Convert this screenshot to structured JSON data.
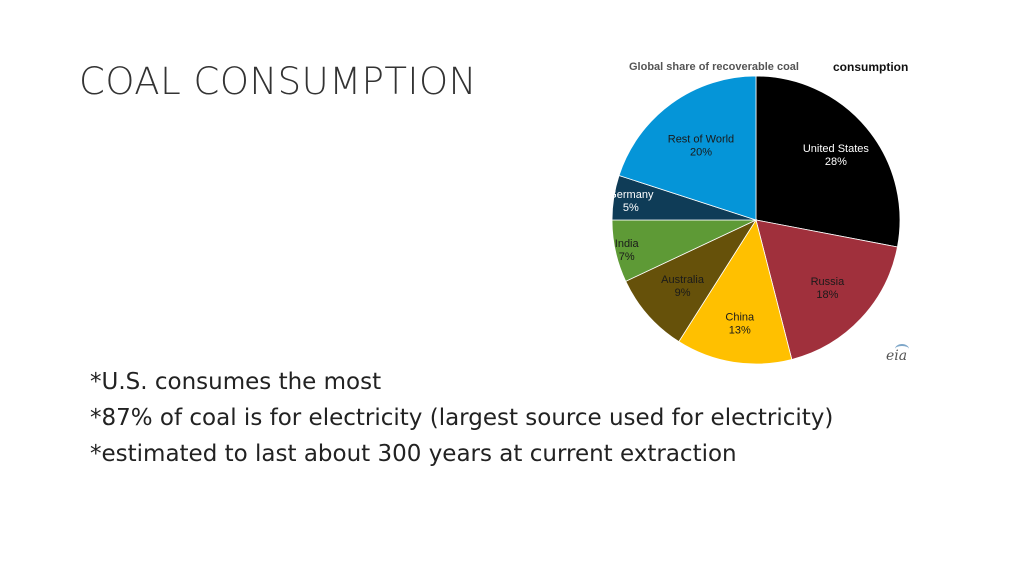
{
  "slide": {
    "title": "COAL CONSUMPTION",
    "notes": [
      "*U.S. consumes the most",
      "*87% of coal is for electricity (largest source used for electricity)",
      "*estimated to last about 300 years at current extraction"
    ],
    "logo_text": "eia"
  },
  "chart_data": {
    "type": "pie",
    "title": "Global share of recoverable coal",
    "title_extra": "consumption",
    "start_angle_deg": 0,
    "direction": "clockwise",
    "slices": [
      {
        "label": "United States",
        "value": 28,
        "value_label": "28%",
        "color": "#000000",
        "text_color": "#ffffff"
      },
      {
        "label": "Russia",
        "value": 18,
        "value_label": "18%",
        "color": "#a0303c",
        "text_color": "#1a1a1a"
      },
      {
        "label": "China",
        "value": 13,
        "value_label": "13%",
        "color": "#ffc000",
        "text_color": "#1a1a1a"
      },
      {
        "label": "Australia",
        "value": 9,
        "value_label": "9%",
        "color": "#66510a",
        "text_color": "#1a1a1a"
      },
      {
        "label": "India",
        "value": 7,
        "value_label": "7%",
        "color": "#5e9a36",
        "text_color": "#1a1a1a"
      },
      {
        "label": "Germany",
        "value": 5,
        "value_label": "5%",
        "color": "#0f3c57",
        "text_color": "#ffffff"
      },
      {
        "label": "Rest of World",
        "value": 20,
        "value_label": "20%",
        "color": "#0595d8",
        "text_color": "#1a1a1a"
      }
    ]
  }
}
